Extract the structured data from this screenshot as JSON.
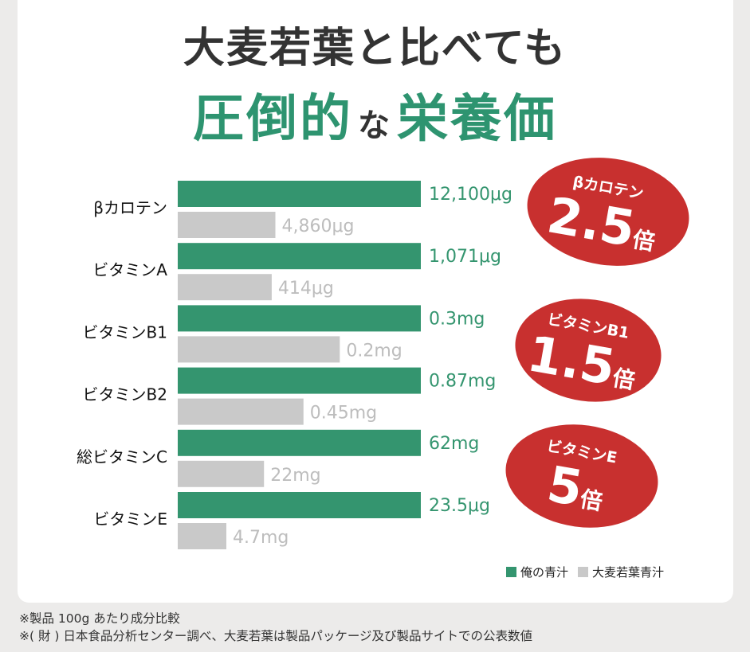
{
  "title": {
    "line1": "大麦若葉と比べても",
    "line2_a": "圧倒的",
    "line2_mid": "な",
    "line2_b": "栄養価"
  },
  "colors": {
    "ours": "#34956f",
    "barley": "#c9c9c9",
    "badge": "#c8302f"
  },
  "chart_data": {
    "type": "bar",
    "orientation": "horizontal",
    "categories": [
      "βカロテン",
      "ビタミンA",
      "ビタミンB1",
      "ビタミンB2",
      "総ビタミンC",
      "ビタミンE"
    ],
    "series": [
      {
        "name": "俺の青汁",
        "values": [
          12100,
          1071,
          0.3,
          0.87,
          62,
          23.5
        ],
        "labels": [
          "12,100μg",
          "1,071μg",
          "0.3mg",
          "0.87mg",
          "62mg",
          "23.5μg"
        ]
      },
      {
        "name": "大麦若葉青汁",
        "values": [
          4860,
          414,
          0.2,
          0.45,
          22,
          4.7
        ],
        "labels": [
          "4,860μg",
          "414μg",
          "0.2mg",
          "0.45mg",
          "22mg",
          "4.7mg"
        ]
      }
    ],
    "badges": [
      {
        "label": "βカロテン",
        "multiplier": "2.5",
        "unit": "倍"
      },
      {
        "label": "ビタミンB1",
        "multiplier": "1.5",
        "unit": "倍"
      },
      {
        "label": "ビタミンE",
        "multiplier": "5",
        "unit": "倍"
      }
    ]
  },
  "legend": {
    "ours": "俺の青汁",
    "barley": "大麦若葉青汁"
  },
  "notes": [
    "※製品 100g あたり成分比較",
    "※( 財 ) 日本食品分析センター調べ、大麦若葉は製品パッケージ及び製品サイトでの公表数値"
  ]
}
